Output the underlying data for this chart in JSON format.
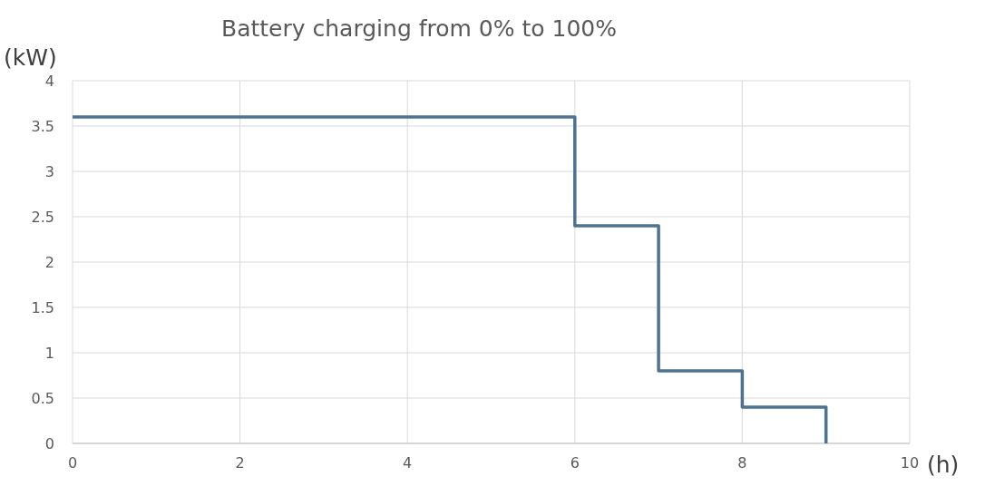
{
  "chart_data": {
    "type": "step",
    "title": "Battery charging from 0% to 100%",
    "xlabel": "(h)",
    "ylabel": "(kW)",
    "x": [
      0,
      6,
      7,
      8,
      9
    ],
    "series": [
      {
        "color": "#4e7390",
        "values": [
          3.6,
          2.4,
          0.8,
          0.4,
          0
        ]
      }
    ],
    "xlim": [
      0,
      10
    ],
    "xticks": [
      0,
      2,
      4,
      6,
      8,
      10
    ],
    "ylim": [
      0,
      4
    ],
    "yticks": [
      0,
      0.5,
      1,
      1.5,
      2,
      2.5,
      3,
      3.5,
      4
    ],
    "grid": true
  }
}
